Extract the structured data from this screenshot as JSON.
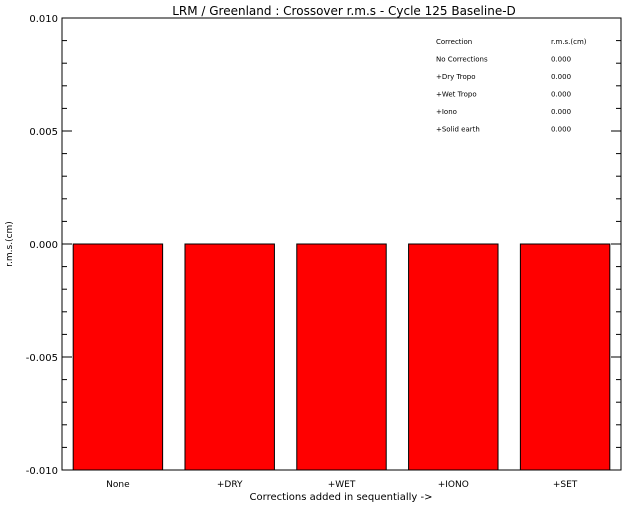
{
  "chart_data": {
    "type": "bar",
    "title": "LRM / Greenland : Crossover r.m.s - Cycle 125 Baseline-D",
    "xlabel": "Corrections added in sequentially ->",
    "ylabel": "r.m.s.(cm)",
    "categories": [
      "None",
      "+DRY",
      "+WET",
      "+IONO",
      "+SET"
    ],
    "values": [
      0.0,
      0.0,
      0.0,
      0.0,
      0.0
    ],
    "ylim": [
      -0.01,
      0.01
    ],
    "yticks": [
      "-0.010",
      "-0.005",
      "0.000",
      "0.005",
      "0.010"
    ],
    "bar_color": "#ff0000",
    "legend_table": {
      "headers": [
        "Correction",
        "r.m.s.(cm)"
      ],
      "rows": [
        [
          "No Corrections",
          "0.000"
        ],
        [
          "+Dry Tropo",
          "0.000"
        ],
        [
          "+Wet Tropo",
          "0.000"
        ],
        [
          "+Iono",
          "0.000"
        ],
        [
          "+Solid earth",
          "0.000"
        ]
      ]
    }
  }
}
